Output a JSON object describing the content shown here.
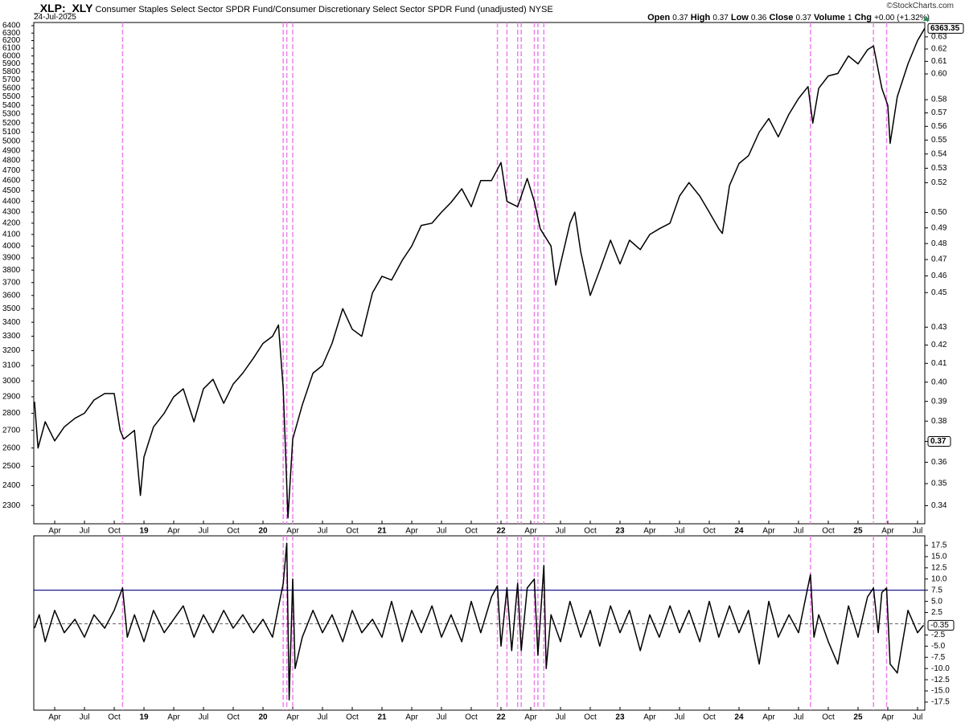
{
  "header": {
    "symbol": "_XLP:_XLY",
    "description": "Consumer Staples Select Sector SPDR Fund/Consumer Discretionary Select Sector SPDR Fund (unadjusted)",
    "exchange": "NYSE",
    "date": "24-Jul-2025",
    "brand": "©StockCharts.com",
    "quote": [
      {
        "label": "Open",
        "value": 0.37
      },
      {
        "label": "High",
        "value": 0.37
      },
      {
        "label": "Low",
        "value": 0.36
      },
      {
        "label": "Close",
        "value": 0.37
      },
      {
        "label": "Volume",
        "value": 1
      },
      {
        "label": "Chg",
        "value": "+0.00 (+1.32%)"
      }
    ]
  },
  "chart_data": [
    {
      "type": "line",
      "log_scale": true,
      "xlim": [
        2018.074,
        2025.561
      ],
      "xticks": [
        {
          "value": 2018.25,
          "label": "Apr"
        },
        {
          "value": 2018.5,
          "label": "Jul"
        },
        {
          "value": 2018.75,
          "label": "Oct"
        },
        {
          "value": 2019,
          "label": "19"
        },
        {
          "value": 2019.25,
          "label": "Apr"
        },
        {
          "value": 2019.5,
          "label": "Jul"
        },
        {
          "value": 2019.75,
          "label": "Oct"
        },
        {
          "value": 2020,
          "label": "20"
        },
        {
          "value": 2020.25,
          "label": "Apr"
        },
        {
          "value": 2020.5,
          "label": "Jul"
        },
        {
          "value": 2020.75,
          "label": "Oct"
        },
        {
          "value": 2021,
          "label": "21"
        },
        {
          "value": 2021.25,
          "label": "Apr"
        },
        {
          "value": 2021.5,
          "label": "Jul"
        },
        {
          "value": 2021.75,
          "label": "Oct"
        },
        {
          "value": 2022,
          "label": "22"
        },
        {
          "value": 2022.25,
          "label": "Apr"
        },
        {
          "value": 2022.5,
          "label": "Jul"
        },
        {
          "value": 2022.75,
          "label": "Oct"
        },
        {
          "value": 2023,
          "label": "23"
        },
        {
          "value": 2023.25,
          "label": "Apr"
        },
        {
          "value": 2023.5,
          "label": "Jul"
        },
        {
          "value": 2023.75,
          "label": "Oct"
        },
        {
          "value": 2024,
          "label": "24"
        },
        {
          "value": 2024.25,
          "label": "Apr"
        },
        {
          "value": 2024.5,
          "label": "Jul"
        },
        {
          "value": 2024.75,
          "label": "Oct"
        },
        {
          "value": 2025,
          "label": "25"
        },
        {
          "value": 2025.25,
          "label": "Apr"
        },
        {
          "value": 2025.5,
          "label": "Jul"
        }
      ],
      "ylim": [
        2212,
        6444
      ],
      "yticks": [
        6400,
        6300,
        6200,
        6100,
        6000,
        5900,
        5800,
        5700,
        5600,
        5500,
        5400,
        5300,
        5200,
        5100,
        5000,
        4900,
        4800,
        4700,
        4600,
        4500,
        4400,
        4300,
        4200,
        4100,
        4000,
        3900,
        3800,
        3700,
        3600,
        3500,
        3400,
        3300,
        3200,
        3100,
        3000,
        2900,
        2800,
        2700,
        2600,
        2500,
        2400,
        2300
      ],
      "y2lim": [
        0.332,
        0.642
      ],
      "y2ticks": [
        0.63,
        0.62,
        0.61,
        {
          "value": 0.6,
          "label": "0.60"
        },
        0.58,
        0.57,
        0.56,
        0.55,
        0.54,
        0.53,
        0.52,
        {
          "value": 0.5,
          "label": "0.50"
        },
        0.49,
        0.48,
        0.47,
        0.46,
        0.45,
        0.43,
        0.42,
        0.41,
        {
          "value": 0.4,
          "label": "0.40"
        },
        0.39,
        0.38,
        0.37,
        0.36,
        0.35,
        0.34
      ],
      "signals": [
        2018.82,
        2020.17,
        2020.2,
        2020.25,
        2021.97,
        2022.05,
        2022.14,
        2022.17,
        2022.28,
        2022.31,
        2022.36,
        2024.6,
        2025.13,
        2025.24
      ],
      "signal_color": "#ee82ee",
      "x": [
        2018.08,
        2018.11,
        2018.17,
        2018.25,
        2018.33,
        2018.42,
        2018.5,
        2018.58,
        2018.67,
        2018.75,
        2018.8,
        2018.83,
        2018.92,
        2018.97,
        2019.0,
        2019.08,
        2019.17,
        2019.25,
        2019.33,
        2019.42,
        2019.5,
        2019.58,
        2019.67,
        2019.75,
        2019.83,
        2019.92,
        2020.0,
        2020.08,
        2020.13,
        2020.17,
        2020.21,
        2020.25,
        2020.33,
        2020.42,
        2020.5,
        2020.58,
        2020.67,
        2020.75,
        2020.83,
        2020.92,
        2021.0,
        2021.08,
        2021.17,
        2021.25,
        2021.33,
        2021.42,
        2021.5,
        2021.58,
        2021.67,
        2021.75,
        2021.83,
        2021.92,
        2022.0,
        2022.05,
        2022.14,
        2022.22,
        2022.28,
        2022.33,
        2022.42,
        2022.46,
        2022.5,
        2022.58,
        2022.62,
        2022.67,
        2022.75,
        2022.83,
        2022.92,
        2023.0,
        2023.08,
        2023.17,
        2023.25,
        2023.33,
        2023.42,
        2023.5,
        2023.58,
        2023.67,
        2023.75,
        2023.83,
        2023.86,
        2023.92,
        2024.0,
        2024.08,
        2024.17,
        2024.25,
        2024.33,
        2024.42,
        2024.5,
        2024.58,
        2024.62,
        2024.67,
        2024.75,
        2024.83,
        2024.92,
        2025.0,
        2025.08,
        2025.13,
        2025.2,
        2025.25,
        2025.27,
        2025.33,
        2025.42,
        2025.5,
        2025.56
      ],
      "series": [
        {
          "color": "#000000",
          "values": [
            2870,
            2600,
            2750,
            2640,
            2720,
            2770,
            2800,
            2880,
            2920,
            2920,
            2700,
            2650,
            2700,
            2350,
            2550,
            2720,
            2800,
            2900,
            2950,
            2750,
            2950,
            3010,
            2860,
            2980,
            3050,
            3150,
            3250,
            3300,
            3380,
            2950,
            2240,
            2650,
            2850,
            3050,
            3100,
            3250,
            3500,
            3350,
            3300,
            3620,
            3750,
            3720,
            3880,
            4000,
            4180,
            4200,
            4300,
            4390,
            4520,
            4350,
            4600,
            4600,
            4780,
            4400,
            4350,
            4620,
            4400,
            4150,
            4000,
            3680,
            3850,
            4200,
            4300,
            3950,
            3600,
            3800,
            4050,
            3850,
            4050,
            3970,
            4100,
            4150,
            4200,
            4450,
            4580,
            4450,
            4300,
            4150,
            4110,
            4550,
            4770,
            4850,
            5100,
            5250,
            5050,
            5300,
            5480,
            5620,
            5200,
            5600,
            5750,
            5780,
            6000,
            5900,
            6080,
            6130,
            5600,
            5400,
            4980,
            5500,
            5900,
            6200,
            6363.35
          ]
        }
      ]
    },
    {
      "type": "line",
      "ylim": [
        -19.3,
        19.65
      ],
      "yticks": [
        17.5,
        {
          "value": 15,
          "label": "15.0"
        },
        12.5,
        {
          "value": 10,
          "label": "10.0"
        },
        7.5,
        {
          "value": 5,
          "label": "5.0"
        },
        2.5,
        -2.5,
        {
          "value": -5,
          "label": "-5.0"
        },
        -7.5,
        {
          "value": -10,
          "label": "-10.0"
        },
        -12.5,
        {
          "value": -15,
          "label": "-15.0"
        },
        -17.5
      ],
      "level": 7.5,
      "level_color": "#000080",
      "x": [
        2018.08,
        2018.12,
        2018.17,
        2018.25,
        2018.33,
        2018.42,
        2018.5,
        2018.58,
        2018.67,
        2018.75,
        2018.82,
        2018.86,
        2018.92,
        2019.0,
        2019.08,
        2019.17,
        2019.25,
        2019.33,
        2019.42,
        2019.5,
        2019.58,
        2019.67,
        2019.75,
        2019.83,
        2019.92,
        2020.0,
        2020.08,
        2020.14,
        2020.17,
        2020.2,
        2020.22,
        2020.25,
        2020.27,
        2020.33,
        2020.42,
        2020.5,
        2020.58,
        2020.67,
        2020.75,
        2020.83,
        2020.92,
        2021.0,
        2021.08,
        2021.17,
        2021.25,
        2021.33,
        2021.42,
        2021.5,
        2021.58,
        2021.67,
        2021.75,
        2021.83,
        2021.92,
        2021.97,
        2022.0,
        2022.05,
        2022.09,
        2022.14,
        2022.17,
        2022.22,
        2022.28,
        2022.31,
        2022.36,
        2022.38,
        2022.42,
        2022.5,
        2022.58,
        2022.67,
        2022.75,
        2022.83,
        2022.92,
        2023.0,
        2023.08,
        2023.17,
        2023.25,
        2023.33,
        2023.42,
        2023.5,
        2023.58,
        2023.67,
        2023.75,
        2023.83,
        2023.92,
        2024.0,
        2024.08,
        2024.17,
        2024.25,
        2024.33,
        2024.42,
        2024.5,
        2024.6,
        2024.63,
        2024.67,
        2024.75,
        2024.83,
        2024.92,
        2025.0,
        2025.08,
        2025.13,
        2025.17,
        2025.2,
        2025.24,
        2025.27,
        2025.33,
        2025.42,
        2025.5,
        2025.55
      ],
      "series": [
        {
          "color": "#000000",
          "values": [
            -1,
            2,
            -4,
            3,
            -2,
            1,
            -3,
            2,
            -1,
            3,
            8,
            -3,
            2,
            -4,
            3,
            -2,
            1,
            4,
            -3,
            2,
            -2,
            3,
            -1,
            2,
            -2,
            1,
            -3,
            5,
            9,
            18,
            -17,
            10,
            -10,
            -3,
            3,
            -2,
            2,
            -4,
            3,
            -2,
            1,
            -3,
            5,
            -4,
            3,
            -2,
            4,
            -3,
            2,
            -4,
            5,
            -2,
            6,
            8.5,
            -5,
            8,
            -6,
            9,
            -6,
            8,
            10,
            -7,
            13,
            -10,
            2,
            -4,
            5,
            -3,
            3,
            -5,
            4,
            -2,
            3,
            -6,
            2,
            -3,
            4,
            -2,
            3,
            -4,
            5,
            -3,
            4,
            -2,
            3,
            -9,
            5,
            -3,
            2,
            -2,
            11,
            -3,
            2,
            -4,
            -9,
            4,
            -3,
            6,
            8,
            -2,
            7,
            8,
            -9,
            -11,
            3,
            -2,
            -0.35
          ]
        }
      ]
    }
  ]
}
